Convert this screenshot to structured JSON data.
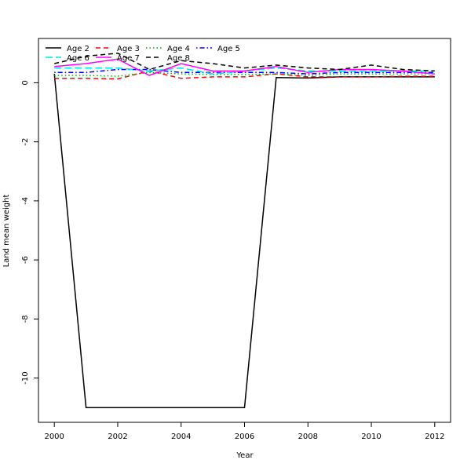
{
  "chart_data": {
    "type": "line",
    "title": "",
    "xlabel": "Year",
    "ylabel": "Land mean weight",
    "xlim": [
      1999.5,
      2012.5
    ],
    "ylim": [
      -11.5,
      1.5
    ],
    "x_ticks": [
      2000,
      2002,
      2004,
      2006,
      2008,
      2010,
      2012
    ],
    "y_ticks": [
      0,
      -2,
      -4,
      -6,
      -8,
      -10
    ],
    "grid": false,
    "legend_position": "top-left",
    "x": [
      2000,
      2001,
      2002,
      2003,
      2004,
      2005,
      2006,
      2007,
      2008,
      2009,
      2010,
      2011,
      2012
    ],
    "series": [
      {
        "name": "Age 2",
        "color": "#000000",
        "dash": "solid",
        "values": [
          0.3,
          -11.0,
          -11.0,
          -11.0,
          -11.0,
          -11.0,
          -11.0,
          0.18,
          0.16,
          0.2,
          0.2,
          0.2,
          0.2
        ]
      },
      {
        "name": "Age 3",
        "color": "#ff0000",
        "dash": "dashed",
        "values": [
          0.15,
          0.15,
          0.13,
          0.4,
          0.15,
          0.2,
          0.2,
          0.3,
          0.2,
          0.2,
          0.2,
          0.22,
          0.22
        ]
      },
      {
        "name": "Age 4",
        "color": "#00aa00",
        "dash": "dotted",
        "values": [
          0.25,
          0.25,
          0.22,
          0.35,
          0.3,
          0.28,
          0.28,
          0.3,
          0.25,
          0.3,
          0.3,
          0.3,
          0.3
        ]
      },
      {
        "name": "Age 5",
        "color": "#0000ff",
        "dash": "dotdash",
        "values": [
          0.35,
          0.35,
          0.45,
          0.45,
          0.35,
          0.35,
          0.35,
          0.35,
          0.3,
          0.35,
          0.35,
          0.35,
          0.35
        ]
      },
      {
        "name": "Age 6",
        "color": "#00e5e5",
        "dash": "longdash",
        "values": [
          0.5,
          0.5,
          0.5,
          0.4,
          0.5,
          0.3,
          0.4,
          0.5,
          0.4,
          0.4,
          0.4,
          0.4,
          0.4
        ]
      },
      {
        "name": "Age 7",
        "color": "#ff00ff",
        "dash": "solid",
        "values": [
          0.55,
          0.65,
          0.8,
          0.25,
          0.65,
          0.4,
          0.4,
          0.55,
          0.35,
          0.45,
          0.45,
          0.4,
          0.3
        ]
      },
      {
        "name": "Age 8",
        "color": "#000000",
        "dash": "dashed",
        "values": [
          0.65,
          0.9,
          1.0,
          0.45,
          0.75,
          0.65,
          0.5,
          0.6,
          0.5,
          0.45,
          0.6,
          0.45,
          0.4
        ]
      }
    ]
  }
}
